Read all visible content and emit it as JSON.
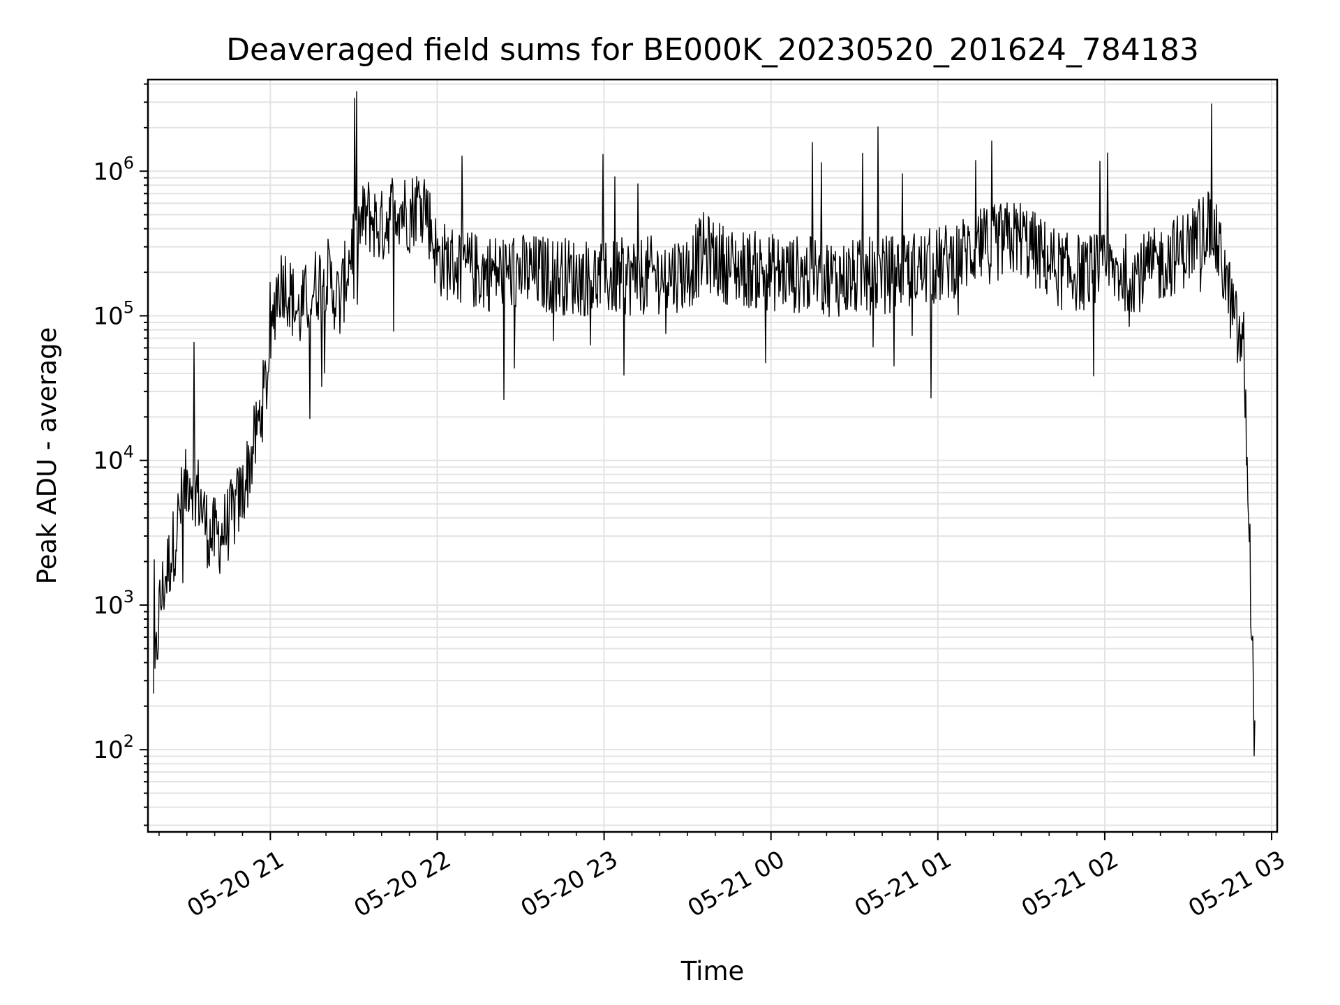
{
  "chart_data": {
    "type": "line",
    "title": "Deaveraged field sums for BE000K_20230520_201624_784183",
    "xlabel": "Time",
    "ylabel": "Peak ADU - average",
    "x_range": [
      "2023-05-20 20:16",
      "2023-05-21 03:02"
    ],
    "xticks": [
      "05-20 21",
      "05-20 22",
      "05-20 23",
      "05-21 00",
      "05-21 01",
      "05-21 02",
      "05-21 03"
    ],
    "y_scale": "log",
    "ylim": [
      27,
      4300000
    ],
    "yticks": [
      {
        "base": "10",
        "exp": "2"
      },
      {
        "base": "10",
        "exp": "3"
      },
      {
        "base": "10",
        "exp": "4"
      },
      {
        "base": "10",
        "exp": "5"
      },
      {
        "base": "10",
        "exp": "6"
      }
    ],
    "grid": true,
    "line_color": "#000000",
    "series": [
      {
        "x": [
          "2023-05-20 20:18",
          "2023-05-20 20:20",
          "2023-05-20 20:22",
          "2023-05-20 20:25",
          "2023-05-20 20:28",
          "2023-05-20 20:31",
          "2023-05-20 20:34",
          "2023-05-20 20:38",
          "2023-05-20 20:42",
          "2023-05-20 20:46",
          "2023-05-20 20:50",
          "2023-05-20 20:55",
          "2023-05-20 21:00",
          "2023-05-20 21:02",
          "2023-05-20 21:05",
          "2023-05-20 21:10",
          "2023-05-20 21:15",
          "2023-05-20 21:20",
          "2023-05-20 21:25",
          "2023-05-20 21:30",
          "2023-05-20 21:35",
          "2023-05-20 21:40",
          "2023-05-20 21:45",
          "2023-05-20 21:50",
          "2023-05-20 21:55",
          "2023-05-20 22:00",
          "2023-05-20 22:15",
          "2023-05-20 22:30",
          "2023-05-20 23:00",
          "2023-05-20 23:30",
          "2023-05-20 23:36",
          "2023-05-20 23:45",
          "2023-05-21 00:00",
          "2023-05-21 00:30",
          "2023-05-21 01:00",
          "2023-05-21 01:15",
          "2023-05-21 01:30",
          "2023-05-21 01:35",
          "2023-05-21 01:45",
          "2023-05-21 02:00",
          "2023-05-21 02:15",
          "2023-05-21 02:30",
          "2023-05-21 02:38",
          "2023-05-21 02:43",
          "2023-05-21 02:48",
          "2023-05-21 02:50",
          "2023-05-21 02:52",
          "2023-05-21 02:54"
        ],
        "y": [
          200,
          900,
          1500,
          2500,
          5000,
          8000,
          6000,
          3000,
          3000,
          4000,
          6000,
          15000,
          50000,
          150000,
          180000,
          100000,
          150000,
          200000,
          120000,
          350000,
          500000,
          400000,
          600000,
          500000,
          700000,
          250000,
          200000,
          200000,
          180000,
          200000,
          280000,
          220000,
          200000,
          180000,
          220000,
          300000,
          350000,
          280000,
          200000,
          200000,
          200000,
          300000,
          450000,
          200000,
          70000,
          60000,
          3000,
          100
        ]
      }
    ]
  }
}
